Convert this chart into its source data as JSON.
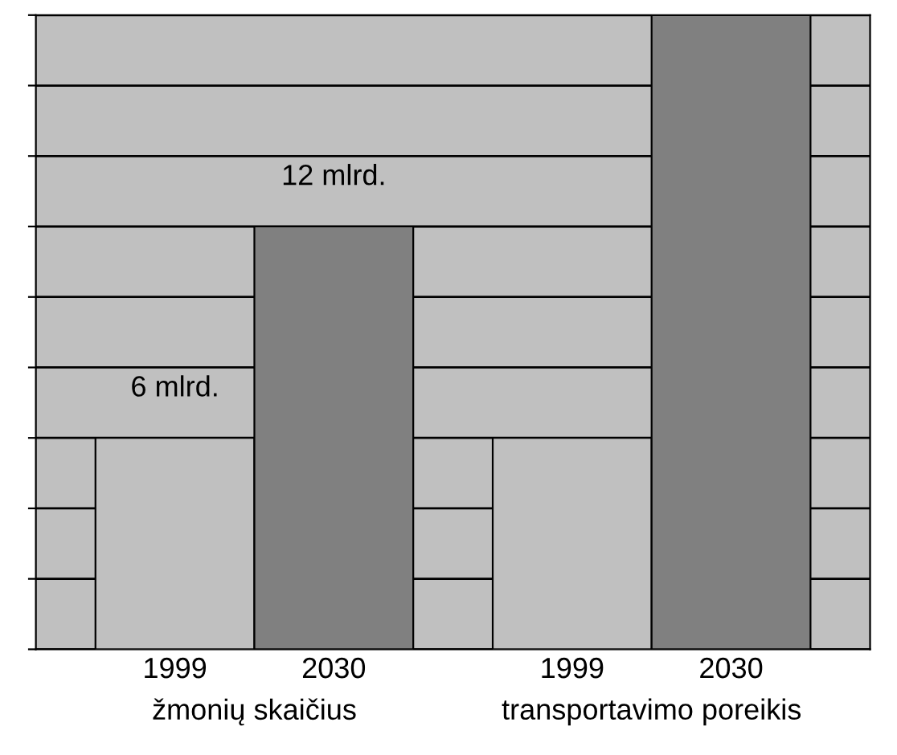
{
  "chart_data": {
    "type": "bar",
    "grid": "y",
    "legend": false,
    "categories": [
      "žmonių skaičius",
      "transportavimo poreikis"
    ],
    "ylim": [
      0,
      18
    ],
    "yticks": [
      {
        "value": 0,
        "label": null
      },
      {
        "value": 2,
        "label": null
      },
      {
        "value": 4,
        "label": null
      },
      {
        "value": 6,
        "label": null
      },
      {
        "value": 8,
        "label": null
      },
      {
        "value": 10,
        "label": null
      },
      {
        "value": 12,
        "label": null
      },
      {
        "value": 14,
        "label": null
      },
      {
        "value": 16,
        "label": null
      },
      {
        "value": 18,
        "label": null
      }
    ],
    "series": [
      {
        "name": "1999",
        "color": "#c0c0c0",
        "values": [
          6,
          6
        ],
        "value_labels": [
          "6 mlrd.",
          null
        ]
      },
      {
        "name": "2030",
        "color": "#808080",
        "values": [
          12,
          18
        ],
        "value_labels": [
          "12 mlrd.",
          null
        ]
      }
    ]
  }
}
